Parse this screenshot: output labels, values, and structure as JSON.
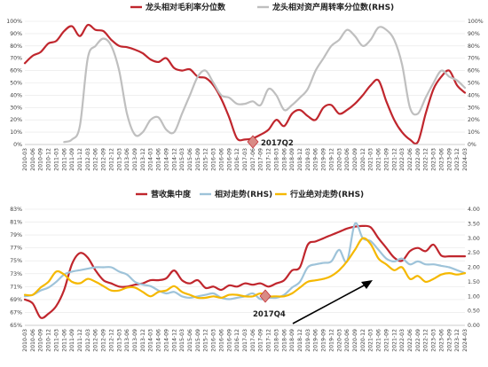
{
  "chart_data": [
    {
      "type": "line",
      "title": "",
      "x": [
        "2010-03",
        "2010-06",
        "2010-09",
        "2010-12",
        "2011-03",
        "2011-06",
        "2011-09",
        "2011-12",
        "2012-03",
        "2012-06",
        "2012-09",
        "2012-12",
        "2013-03",
        "2013-06",
        "2013-09",
        "2013-12",
        "2014-03",
        "2014-06",
        "2014-09",
        "2014-12",
        "2015-03",
        "2015-06",
        "2015-09",
        "2015-12",
        "2016-03",
        "2016-06",
        "2016-09",
        "2016-12",
        "2017-03",
        "2017-06",
        "2017-09",
        "2017-12",
        "2018-03",
        "2018-06",
        "2018-09",
        "2018-12",
        "2019-03",
        "2019-06",
        "2019-09",
        "2019-12",
        "2020-03",
        "2020-06",
        "2020-09",
        "2020-12",
        "2021-03",
        "2021-06",
        "2021-09",
        "2021-12",
        "2022-03",
        "2022-06",
        "2022-09",
        "2022-12",
        "2023-03",
        "2023-06",
        "2023-09",
        "2023-12",
        "2024-03"
      ],
      "ylim": [
        0,
        100
      ],
      "yticks": [
        "0%",
        "10%",
        "20%",
        "30%",
        "40%",
        "50%",
        "60%",
        "70%",
        "80%",
        "90%",
        "100%"
      ],
      "y2lim": [
        0,
        100
      ],
      "y2ticks": [
        "0%",
        "10%",
        "20%",
        "30%",
        "40%",
        "50%",
        "60%",
        "70%",
        "80%",
        "90%",
        "100%"
      ],
      "legend_position": "top",
      "series": [
        {
          "name": "龙头相对毛利率分位数",
          "axis": "left",
          "color": "#c0262d",
          "values": [
            66,
            72,
            75,
            82,
            84,
            92,
            96,
            88,
            97,
            93,
            92,
            85,
            80,
            79,
            77,
            74,
            69,
            67,
            70,
            62,
            60,
            61,
            55,
            54,
            48,
            37,
            22,
            5,
            4,
            5,
            8,
            12,
            20,
            15,
            25,
            28,
            23,
            20,
            30,
            32,
            25,
            28,
            33,
            40,
            48,
            52,
            35,
            20,
            10,
            4,
            2,
            25,
            45,
            55,
            60,
            48,
            42
          ]
        },
        {
          "name": "龙头相对资产周转率分位数(RHS)",
          "axis": "right",
          "color": "#bfbfbf",
          "values": [
            null,
            null,
            null,
            null,
            null,
            2,
            4,
            15,
            70,
            80,
            86,
            80,
            60,
            25,
            8,
            10,
            20,
            22,
            12,
            10,
            25,
            40,
            55,
            60,
            50,
            40,
            38,
            33,
            33,
            35,
            32,
            45,
            40,
            28,
            32,
            38,
            45,
            60,
            70,
            80,
            85,
            93,
            88,
            80,
            85,
            95,
            93,
            85,
            65,
            30,
            25,
            38,
            50,
            60,
            55,
            52,
            46
          ]
        }
      ]
    },
    {
      "type": "line",
      "title": "",
      "x": [
        "2010-03",
        "2010-06",
        "2010-09",
        "2010-12",
        "2011-03",
        "2011-06",
        "2011-09",
        "2011-12",
        "2012-03",
        "2012-06",
        "2012-09",
        "2012-12",
        "2013-03",
        "2013-06",
        "2013-09",
        "2013-12",
        "2014-03",
        "2014-06",
        "2014-09",
        "2014-12",
        "2015-03",
        "2015-06",
        "2015-09",
        "2015-12",
        "2016-03",
        "2016-06",
        "2016-09",
        "2016-12",
        "2017-03",
        "2017-06",
        "2017-09",
        "2017-12",
        "2018-03",
        "2018-06",
        "2018-09",
        "2018-12",
        "2019-03",
        "2019-06",
        "2019-09",
        "2019-12",
        "2020-03",
        "2020-06",
        "2020-09",
        "2020-12",
        "2021-03",
        "2021-06",
        "2021-09",
        "2021-12",
        "2022-03",
        "2022-06",
        "2022-09",
        "2022-12",
        "2023-03",
        "2023-06",
        "2023-09",
        "2023-12",
        "2024-03"
      ],
      "ylim": [
        65,
        83
      ],
      "yticks": [
        "65%",
        "67%",
        "69%",
        "71%",
        "73%",
        "75%",
        "77%",
        "79%",
        "81%",
        "83%"
      ],
      "y2lim": [
        0.0,
        4.0
      ],
      "y2ticks": [
        "0.00",
        "0.50",
        "1.00",
        "1.50",
        "2.00",
        "2.50",
        "3.00",
        "3.50",
        "4.00"
      ],
      "legend_position": "top",
      "series": [
        {
          "name": "营收集中度",
          "axis": "left",
          "color": "#c0262d",
          "values": [
            69.0,
            68.4,
            66.2,
            66.8,
            68.0,
            70.5,
            74.5,
            76.2,
            75.5,
            73.5,
            72.0,
            71.5,
            71.0,
            71.0,
            71.3,
            71.5,
            72.0,
            72.0,
            72.3,
            73.5,
            72.0,
            71.5,
            72.0,
            70.8,
            71.0,
            70.5,
            71.2,
            71.0,
            71.5,
            71.3,
            71.5,
            71.0,
            71.5,
            72.0,
            73.5,
            74.0,
            77.5,
            78.0,
            78.5,
            79.0,
            79.5,
            80.0,
            80.3,
            80.4,
            80.2,
            78.5,
            77.0,
            75.5,
            75.0,
            76.5,
            77.0,
            76.5,
            77.5,
            75.8,
            75.7,
            75.7,
            75.7
          ]
        },
        {
          "name": "相对走势(RHS)",
          "axis": "right",
          "color": "#9ec3d9",
          "values": [
            1.0,
            1.05,
            1.2,
            1.3,
            1.5,
            1.75,
            1.85,
            1.9,
            1.95,
            2.0,
            2.0,
            2.0,
            1.85,
            1.75,
            1.5,
            1.4,
            1.35,
            1.2,
            1.1,
            1.15,
            1.0,
            0.95,
            1.0,
            1.05,
            1.1,
            0.95,
            0.9,
            0.95,
            1.0,
            1.1,
            0.9,
            0.95,
            0.95,
            1.05,
            1.3,
            1.5,
            2.0,
            2.1,
            2.15,
            2.2,
            2.6,
            2.2,
            3.5,
            3.0,
            2.9,
            2.6,
            2.3,
            2.2,
            2.3,
            2.1,
            2.2,
            2.1,
            2.1,
            2.05,
            2.0,
            1.9,
            1.8
          ]
        },
        {
          "name": "行业绝对走势(RHS)",
          "axis": "right",
          "color": "#f5b800",
          "values": [
            1.05,
            1.05,
            1.3,
            1.5,
            1.85,
            1.75,
            1.5,
            1.45,
            1.6,
            1.5,
            1.35,
            1.2,
            1.2,
            1.3,
            1.3,
            1.15,
            1.0,
            1.15,
            1.2,
            1.35,
            1.15,
            1.05,
            0.95,
            0.95,
            1.0,
            0.95,
            1.05,
            1.05,
            1.0,
            1.0,
            1.1,
            1.0,
            1.0,
            1.0,
            1.1,
            1.3,
            1.5,
            1.55,
            1.6,
            1.7,
            1.9,
            2.2,
            2.6,
            3.0,
            2.8,
            2.3,
            2.1,
            1.9,
            2.0,
            1.6,
            1.7,
            1.5,
            1.6,
            1.75,
            1.8,
            1.75,
            1.8
          ]
        }
      ]
    }
  ],
  "annotations": {
    "top_marker": "2017Q2",
    "bottom_marker": "2017Q4"
  }
}
